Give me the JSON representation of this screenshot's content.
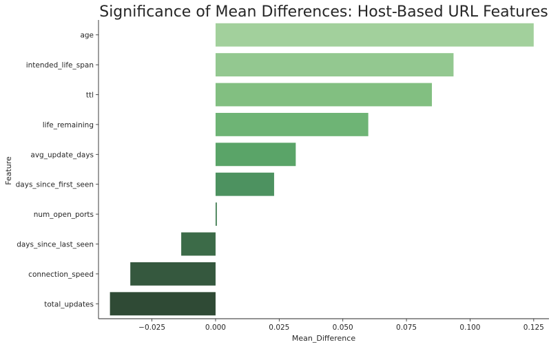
{
  "chart_data": {
    "type": "bar",
    "orientation": "horizontal",
    "title": "Significance of Mean Differences: Host-Based URL Features",
    "xlabel": "Mean_Difference",
    "ylabel": "Feature",
    "categories": [
      "age",
      "intended_life_span",
      "ttl",
      "life_remaining",
      "avg_update_days",
      "days_since_first_seen",
      "num_open_ports",
      "days_since_last_seen",
      "connection_speed",
      "total_updates"
    ],
    "values": [
      0.125,
      0.0935,
      0.085,
      0.06,
      0.0315,
      0.023,
      0.0005,
      -0.0135,
      -0.0335,
      -0.0415
    ],
    "xlim": [
      -0.046,
      0.131
    ],
    "xticks": [
      -0.025,
      0.0,
      0.025,
      0.05,
      0.075,
      0.1,
      0.125
    ],
    "xtick_labels": [
      "−0.025",
      "0.000",
      "0.025",
      "0.050",
      "0.075",
      "0.100",
      "0.125"
    ],
    "grid": false,
    "legend": "none",
    "colors": [
      "#a2d09c",
      "#93c890",
      "#82bf81",
      "#6eb475",
      "#5aa468",
      "#4d9260",
      "#447f55",
      "#3c6b48",
      "#35583e",
      "#2f4a35"
    ]
  }
}
